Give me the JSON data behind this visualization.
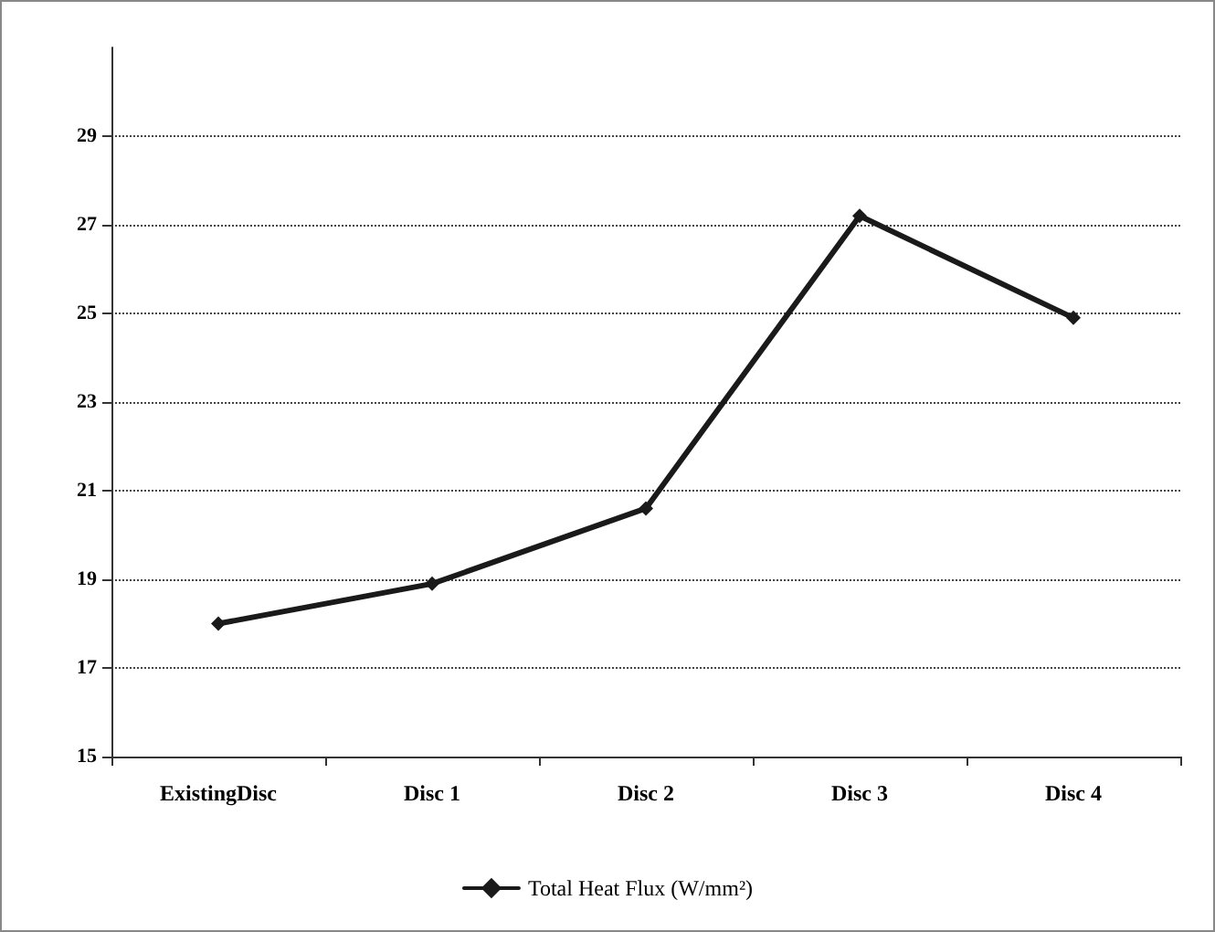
{
  "chart_data": {
    "type": "line",
    "categories": [
      "ExistingDisc",
      "Disc 1",
      "Disc 2",
      "Disc 3",
      "Disc 4"
    ],
    "series": [
      {
        "name": "Total Heat Flux (W/mm²)",
        "color": "#1a1a1a",
        "values": [
          18.0,
          18.9,
          20.6,
          27.2,
          24.9
        ]
      }
    ],
    "ylim": [
      15,
      31
    ],
    "yticks": [
      15,
      17,
      19,
      21,
      23,
      25,
      27,
      29
    ],
    "grid": "y",
    "legend": "bottom",
    "marker": "diamond",
    "line_style": "solid"
  }
}
